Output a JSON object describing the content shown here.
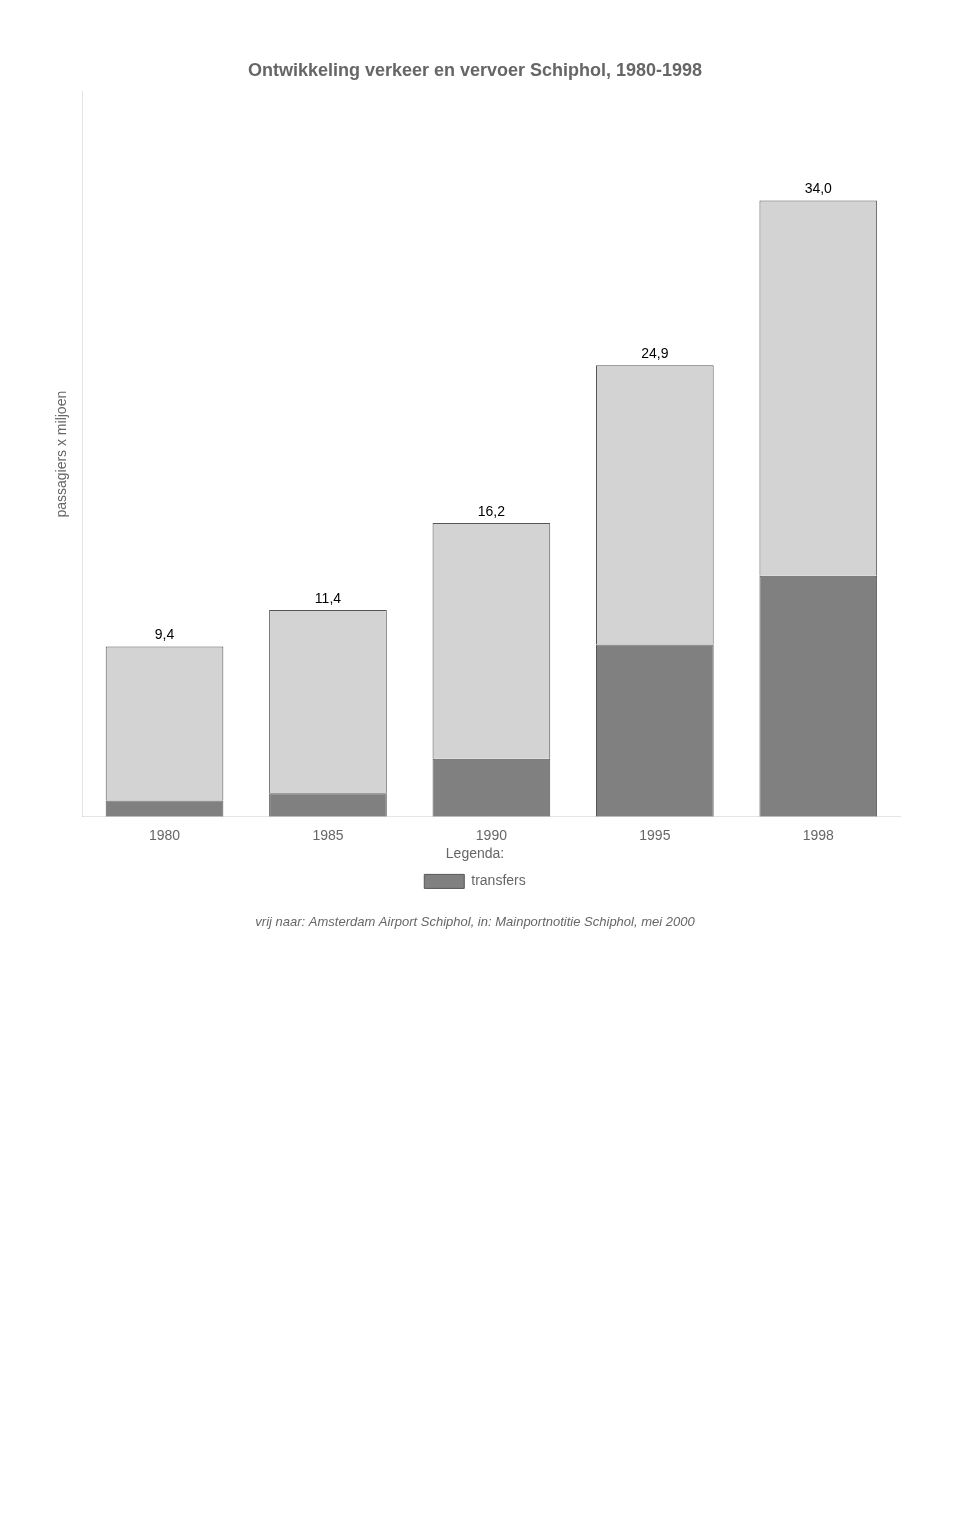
{
  "chart_data": {
    "type": "bar",
    "title": "Ontwikkeling verkeer en vervoer Schiphol, 1980-1998",
    "ylabel": "passagiers x miljoen",
    "categories": [
      "1980",
      "1985",
      "1990",
      "1995",
      "1998"
    ],
    "series": [
      {
        "name": "transfers",
        "color": "#808080",
        "values": [
          0.9,
          1.3,
          3.2,
          9.5,
          13.3
        ]
      },
      {
        "color": "#d3d3d3",
        "values": [
          8.5,
          10.1,
          13,
          15.4,
          20.7
        ]
      }
    ],
    "totals": [
      9.4,
      11.4,
      16.2,
      24.9,
      34.0
    ],
    "total_labels": [
      "9,4",
      "11,4",
      "16,2",
      "24,9",
      "34,0"
    ],
    "stacked": true,
    "ylim": [
      0,
      40
    ],
    "tick_labels": "x",
    "grid": false,
    "legend": "bottom",
    "legend_title": "Legenda:",
    "annotations": [
      "vrij naar: Amsterdam Airport Schiphol, in: Mainportnotitie Schiphol, mei 2000"
    ]
  }
}
